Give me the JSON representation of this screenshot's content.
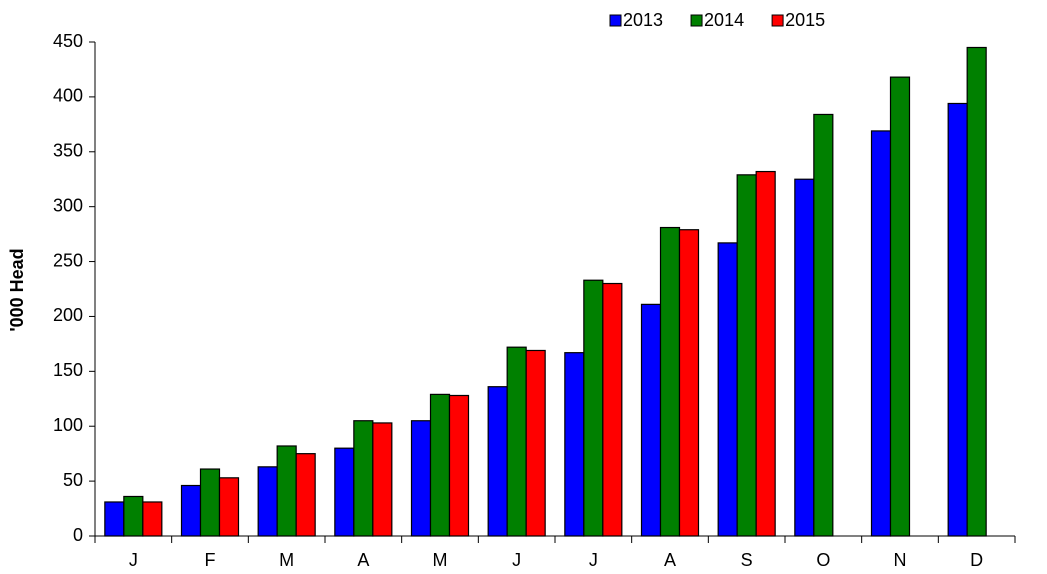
{
  "chart_data": {
    "type": "bar",
    "y_label": "'000 Head",
    "categories": [
      "J",
      "F",
      "M",
      "A",
      "M",
      "J",
      "J",
      "A",
      "S",
      "O",
      "N",
      "D"
    ],
    "series": [
      {
        "name": "2013",
        "color": "#0000ff",
        "values": [
          31,
          46,
          63,
          80,
          105,
          136,
          167,
          211,
          267,
          325,
          369,
          394
        ]
      },
      {
        "name": "2014",
        "color": "#008000",
        "values": [
          36,
          61,
          82,
          105,
          129,
          172,
          233,
          281,
          329,
          384,
          418,
          445
        ]
      },
      {
        "name": "2015",
        "color": "#ff0000",
        "values": [
          31,
          53,
          75,
          103,
          128,
          169,
          230,
          279,
          332,
          null,
          null,
          null
        ]
      }
    ],
    "ylim": [
      0,
      450
    ],
    "yticks": [
      0,
      50,
      100,
      150,
      200,
      250,
      300,
      350,
      400,
      450
    ],
    "legend": "top-right"
  }
}
